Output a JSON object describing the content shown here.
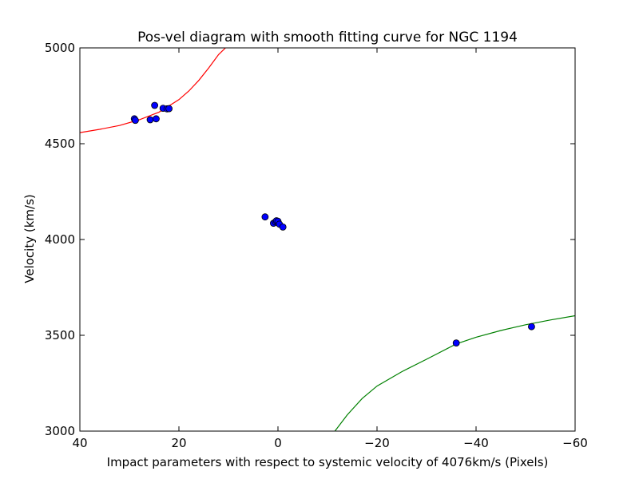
{
  "chart_data": {
    "type": "scatter",
    "title": "Pos-vel diagram with smooth fitting curve for NGC 1194",
    "xlabel": "Impact parameters with respect to systemic velocity of 4076km/s (Pixels)",
    "ylabel": "Velocity (km/s)",
    "xlim": [
      40,
      -60
    ],
    "ylim": [
      3000,
      5000
    ],
    "x_inverted": true,
    "xticks": [
      40,
      20,
      0,
      -20,
      -40,
      -60
    ],
    "xtick_labels": [
      "40",
      "20",
      "0",
      "−20",
      "−40",
      "−60"
    ],
    "yticks": [
      3000,
      3500,
      4000,
      4500,
      5000
    ],
    "ytick_labels": [
      "3000",
      "3500",
      "4000",
      "4500",
      "5000"
    ],
    "grid": false,
    "points": {
      "color": "#0000ff",
      "x": [
        29.0,
        28.8,
        25.8,
        24.9,
        24.6,
        23.2,
        22.4,
        22.0,
        2.6,
        0.9,
        0.5,
        0.3,
        0.0,
        -0.3,
        -1.0,
        -36.0,
        -51.2
      ],
      "y": [
        4630,
        4622,
        4625,
        4700,
        4630,
        4685,
        4682,
        4683,
        4118,
        4085,
        4092,
        4098,
        4095,
        4080,
        4065,
        3460,
        3545
      ]
    },
    "curves": [
      {
        "color": "#ff0000",
        "x": [
          40,
          36,
          32,
          28,
          24,
          20,
          18,
          16,
          14,
          12,
          10.6
        ],
        "y": [
          4558,
          4575,
          4595,
          4625,
          4665,
          4730,
          4775,
          4830,
          4895,
          4965,
          5000
        ]
      },
      {
        "color": "#008000",
        "x": [
          -11.5,
          -14,
          -17,
          -20,
          -25,
          -30,
          -36,
          -40,
          -45,
          -50,
          -55,
          -60
        ],
        "y": [
          3000,
          3085,
          3170,
          3235,
          3310,
          3375,
          3455,
          3490,
          3525,
          3555,
          3580,
          3602
        ]
      }
    ]
  }
}
